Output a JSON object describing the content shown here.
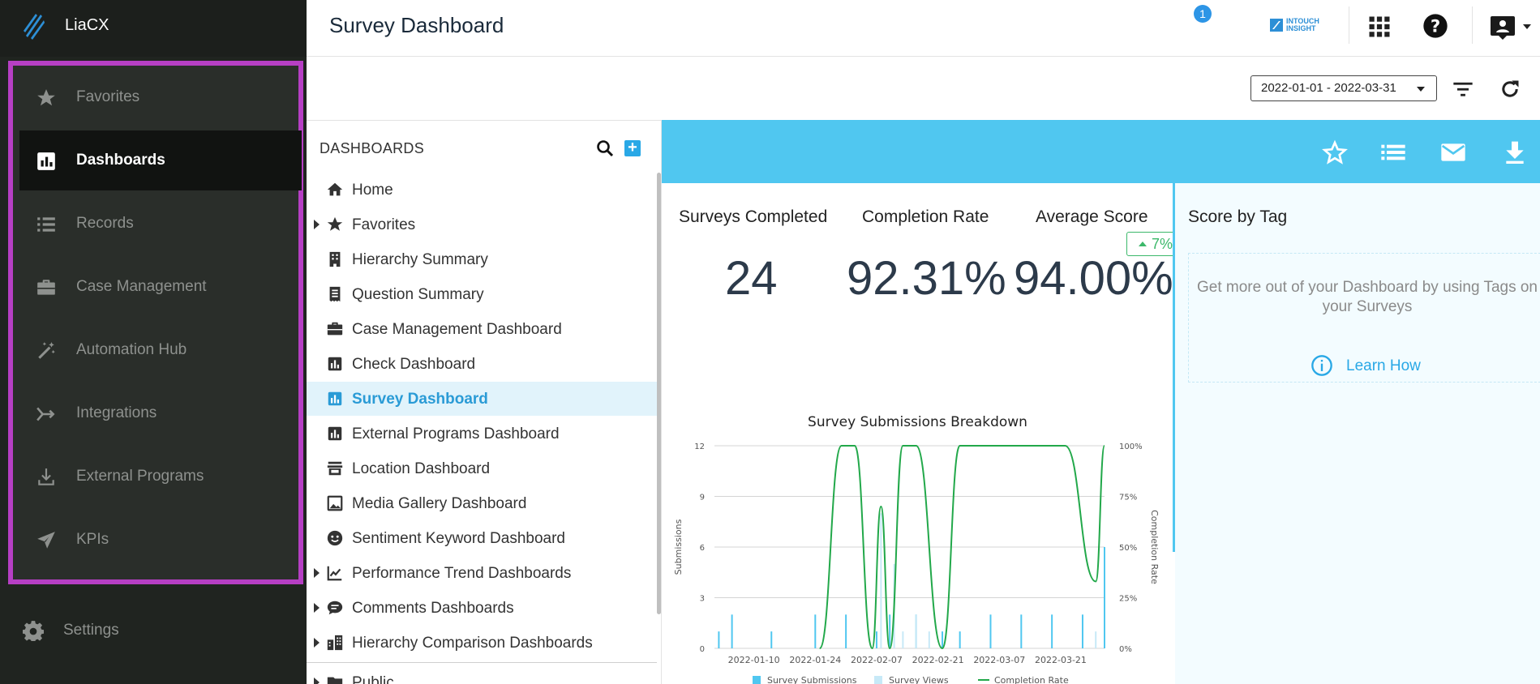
{
  "app": {
    "name": "LiaCX"
  },
  "nav": {
    "items": [
      {
        "label": "Favorites",
        "icon": "star-icon",
        "active": false
      },
      {
        "label": "Dashboards",
        "icon": "bar-chart-icon",
        "active": true
      },
      {
        "label": "Records",
        "icon": "list-icon",
        "active": false
      },
      {
        "label": "Case Management",
        "icon": "briefcase-icon",
        "active": false
      },
      {
        "label": "Automation Hub",
        "icon": "magic-wand-icon",
        "active": false
      },
      {
        "label": "Integrations",
        "icon": "merge-arrow-icon",
        "active": false
      },
      {
        "label": "External Programs",
        "icon": "download-tray-icon",
        "active": false
      },
      {
        "label": "KPIs",
        "icon": "send-icon",
        "active": false
      }
    ],
    "settings_label": "Settings"
  },
  "header": {
    "title": "Survey Dashboard",
    "brand_line1": "INTOUCH",
    "brand_line2": "INSIGHT",
    "notification_count": "1"
  },
  "filters": {
    "date_range": "2022-01-01 - 2022-03-31"
  },
  "dashboards": {
    "heading": "DASHBOARDS",
    "items": [
      {
        "label": "Home",
        "icon": "home-icon",
        "expandable": false
      },
      {
        "label": "Favorites",
        "icon": "star-icon",
        "expandable": true
      },
      {
        "label": "Hierarchy Summary",
        "icon": "building-icon",
        "expandable": false
      },
      {
        "label": "Question Summary",
        "icon": "receipt-icon",
        "expandable": false
      },
      {
        "label": "Case Management Dashboard",
        "icon": "briefcase-icon",
        "expandable": false
      },
      {
        "label": "Check Dashboard",
        "icon": "bar-chart-icon",
        "expandable": false
      },
      {
        "label": "Survey Dashboard",
        "icon": "bar-chart-icon",
        "expandable": false,
        "active": true
      },
      {
        "label": "External Programs Dashboard",
        "icon": "bar-chart-icon",
        "expandable": false
      },
      {
        "label": "Location Dashboard",
        "icon": "store-icon",
        "expandable": false
      },
      {
        "label": "Media Gallery Dashboard",
        "icon": "image-icon",
        "expandable": false
      },
      {
        "label": "Sentiment Keyword Dashboard",
        "icon": "smiley-icon",
        "expandable": false
      },
      {
        "label": "Performance Trend Dashboards",
        "icon": "trend-icon",
        "expandable": true
      },
      {
        "label": "Comments Dashboards",
        "icon": "comment-icon",
        "expandable": true
      },
      {
        "label": "Hierarchy Comparison Dashboards",
        "icon": "city-icon",
        "expandable": true
      },
      {
        "label": "Public",
        "icon": "folder-icon",
        "expandable": true
      }
    ]
  },
  "metrics": [
    {
      "title": "Surveys Completed",
      "value": "24"
    },
    {
      "title": "Completion Rate",
      "value": "92.31%"
    },
    {
      "title": "Average Score",
      "value": "94.00%"
    }
  ],
  "trend": {
    "value": "7%"
  },
  "score_by_tag": {
    "title": "Score by Tag",
    "message": "Get more out of your Dashboard by using Tags on your Surveys",
    "link": "Learn How"
  },
  "colors": {
    "accent": "#50c7f0",
    "highlight": "#b63fc4",
    "nav_bg": "#202420",
    "success": "#3cb86a",
    "link": "#29a8e6"
  },
  "chart_data": {
    "type": "bar",
    "title": "Survey Submissions Breakdown",
    "ylabel": "Submissions",
    "y2label": "Completion Rate",
    "ylim": [
      0,
      12
    ],
    "y_ticks": [
      "12",
      "9",
      "6",
      "3",
      "0"
    ],
    "y2lim": [
      0,
      100
    ],
    "y2_ticks": [
      "100%",
      "75%",
      "50%",
      "25%",
      "0%"
    ],
    "x_ticks": [
      "2022-01-10",
      "2022-01-24",
      "2022-02-07",
      "2022-02-21",
      "2022-03-07",
      "2022-03-21"
    ],
    "x_range_days": [
      0,
      89
    ],
    "series": [
      {
        "name": "Survey Submissions",
        "kind": "bar",
        "color": "#50c7f0",
        "points": [
          [
            1,
            1
          ],
          [
            4,
            2
          ],
          [
            13,
            1
          ],
          [
            23,
            2
          ],
          [
            30,
            2
          ],
          [
            37,
            1
          ],
          [
            40,
            2
          ],
          [
            46,
            2
          ],
          [
            52,
            1
          ],
          [
            56,
            1
          ],
          [
            63,
            2
          ],
          [
            70,
            2
          ],
          [
            77,
            2
          ],
          [
            84,
            2
          ],
          [
            89,
            6
          ]
        ]
      },
      {
        "name": "Survey Views",
        "kind": "bar",
        "color": "#c7e9f7",
        "points": [
          [
            38,
            8
          ],
          [
            41,
            5
          ],
          [
            43,
            1
          ],
          [
            46,
            2
          ],
          [
            49,
            1
          ],
          [
            87,
            1
          ]
        ]
      },
      {
        "name": "Completion Rate",
        "kind": "line",
        "color": "#22a84a",
        "points": [
          [
            24,
            0
          ],
          [
            29,
            100
          ],
          [
            32,
            100
          ],
          [
            36,
            0
          ],
          [
            38,
            70
          ],
          [
            40,
            0
          ],
          [
            43,
            100
          ],
          [
            46,
            100
          ],
          [
            52,
            0
          ],
          [
            56,
            100
          ],
          [
            80,
            100
          ],
          [
            87,
            33
          ],
          [
            89,
            100
          ]
        ]
      }
    ],
    "legend": [
      "Survey Submissions",
      "Survey Views",
      "Completion Rate"
    ]
  }
}
